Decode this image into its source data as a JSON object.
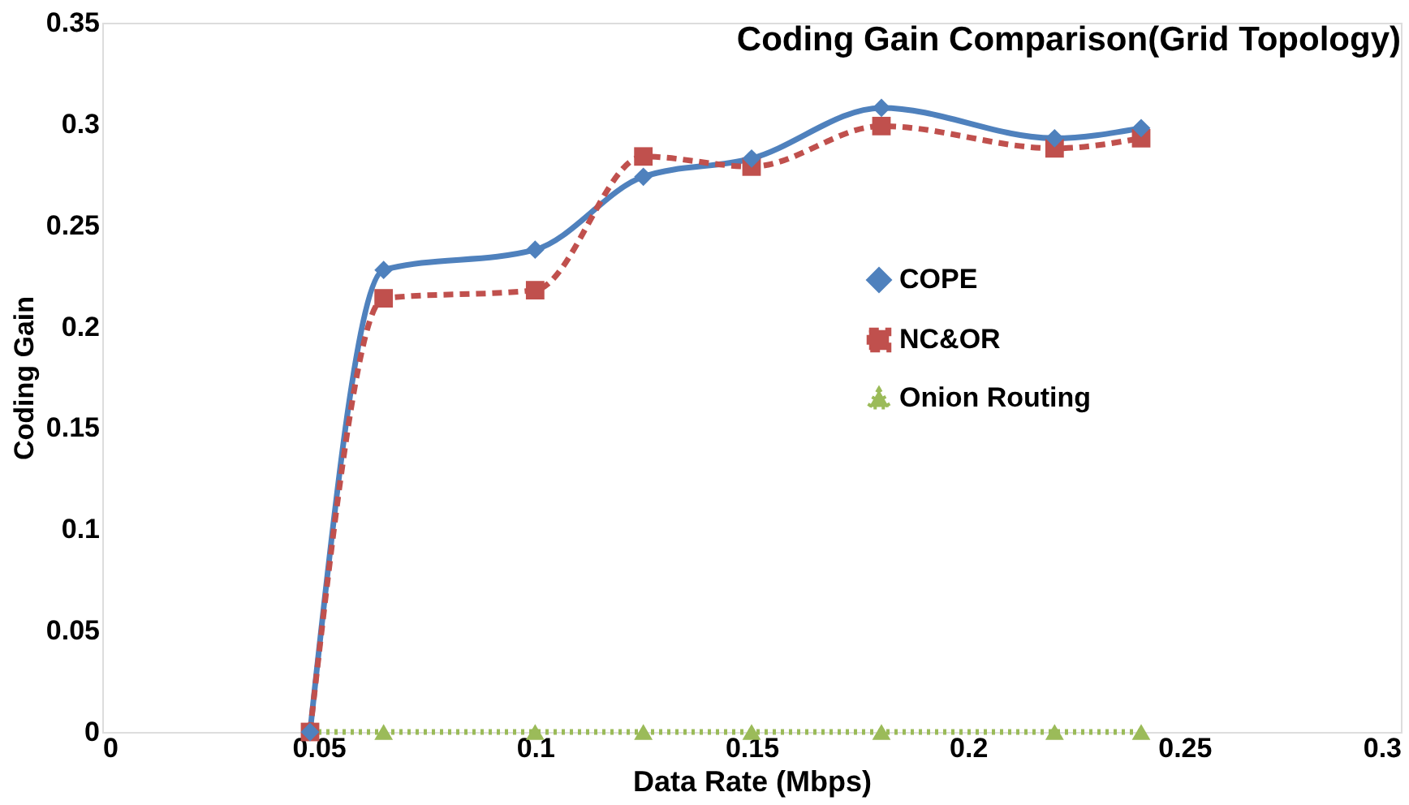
{
  "chart_data": {
    "type": "line",
    "title": "Coding Gain Comparison(Grid Topology)",
    "xlabel": "Data Rate (Mbps)",
    "ylabel": "Coding Gain",
    "x": [
      0.048,
      0.065,
      0.1,
      0.125,
      0.15,
      0.18,
      0.22,
      0.24
    ],
    "series": [
      {
        "name": "COPE",
        "color": "#4f81bd",
        "marker": "diamond",
        "line_style": "solid",
        "values": [
          0,
          0.228,
          0.238,
          0.274,
          0.283,
          0.308,
          0.293,
          0.298
        ]
      },
      {
        "name": "NC&OR",
        "color": "#c0504d",
        "marker": "square",
        "line_style": "dashed",
        "values": [
          0,
          0.214,
          0.218,
          0.284,
          0.279,
          0.299,
          0.288,
          0.293
        ]
      },
      {
        "name": "Onion Routing",
        "color": "#9bbb59",
        "marker": "triangle",
        "line_style": "dotted",
        "values": [
          0,
          0,
          0,
          0,
          0,
          0,
          0,
          0
        ]
      }
    ],
    "xlim": [
      0,
      0.3
    ],
    "xticks": [
      0,
      0.05,
      0.1,
      0.15,
      0.2,
      0.25,
      0.3
    ],
    "ylim": [
      0,
      0.35
    ],
    "yticks": [
      0,
      0.05,
      0.1,
      0.15,
      0.2,
      0.25,
      0.3,
      0.35
    ],
    "grid": false,
    "legend": "right"
  }
}
